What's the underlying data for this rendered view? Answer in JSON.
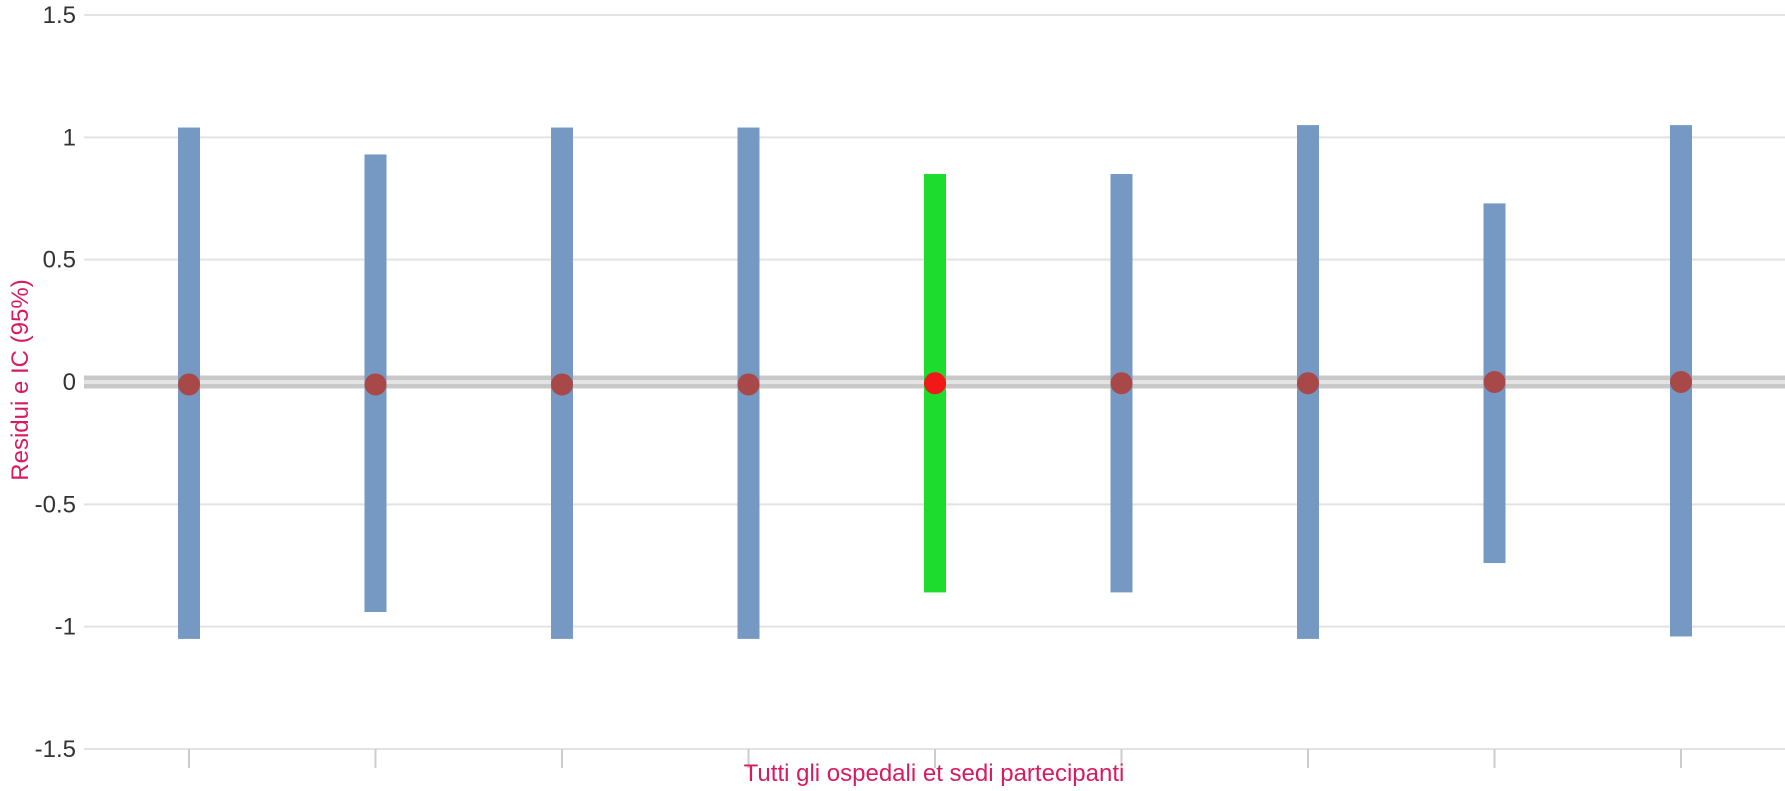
{
  "chart_data": {
    "type": "error_bar",
    "title": "",
    "xlabel": "Tutti gli ospedali et sedi partecipanti",
    "ylabel": "Residui e IC (95%)",
    "ylim": [
      -1.5,
      1.5
    ],
    "yticks": [
      1.5,
      1,
      0.5,
      0,
      -0.5,
      -1,
      -1.5
    ],
    "ytick_labels": [
      "1.5",
      "1",
      "0.5",
      "0",
      "-0.5",
      "-1",
      "-1.5"
    ],
    "grid": true,
    "reference_line": 0,
    "points": [
      {
        "residual": -0.01,
        "ci_low": -1.05,
        "ci_high": 1.04,
        "highlight": false
      },
      {
        "residual": -0.01,
        "ci_low": -0.94,
        "ci_high": 0.93,
        "highlight": false
      },
      {
        "residual": -0.01,
        "ci_low": -1.05,
        "ci_high": 1.04,
        "highlight": false
      },
      {
        "residual": -0.01,
        "ci_low": -1.05,
        "ci_high": 1.04,
        "highlight": false
      },
      {
        "residual": -0.005,
        "ci_low": -0.86,
        "ci_high": 0.85,
        "highlight": true
      },
      {
        "residual": -0.005,
        "ci_low": -0.86,
        "ci_high": 0.85,
        "highlight": false
      },
      {
        "residual": -0.005,
        "ci_low": -1.05,
        "ci_high": 1.05,
        "highlight": false
      },
      {
        "residual": 0.0,
        "ci_low": -0.74,
        "ci_high": 0.73,
        "highlight": false
      },
      {
        "residual": 0.0,
        "ci_low": -1.04,
        "ci_high": 1.05,
        "highlight": false
      }
    ],
    "colors": {
      "bar": "#7599c2",
      "bar_highlight": "#1edc2e",
      "marker": "#a84848",
      "marker_highlight": "#f01818",
      "axis_title": "#d81b60",
      "gridline": "#e3e3e3",
      "reference_line": "#c8c8c8"
    }
  }
}
